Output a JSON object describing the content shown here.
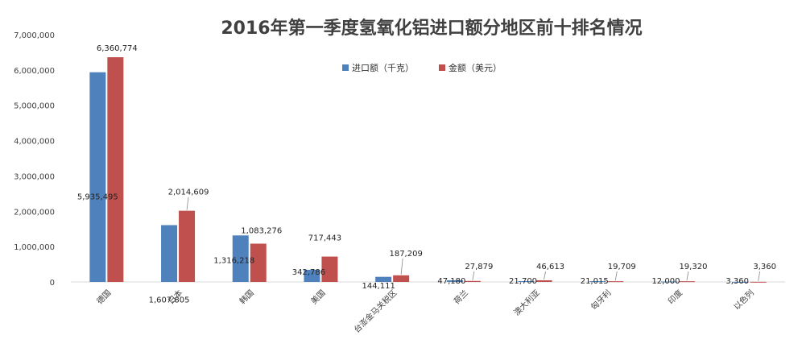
{
  "chart_data": {
    "type": "bar",
    "title": "2016年第一季度氢氧化铝进口额分地区前十排名情况",
    "categories": [
      "德国",
      "日本",
      "韩国",
      "美国",
      "台澎金马关税区",
      "荷兰",
      "澳大利亚",
      "匈牙利",
      "印度",
      "以色列"
    ],
    "series": [
      {
        "name": "进口额（千克）",
        "color": "#4f81bd",
        "values": [
          5935495,
          1607805,
          1316218,
          342786,
          144111,
          47180,
          21700,
          21015,
          12000,
          3360
        ],
        "labels": [
          "5,935,495",
          "1,607,805",
          "1,316,218",
          "342,786",
          "144,111",
          "47,180",
          "21,700",
          "21,015",
          "12,000",
          "3,360"
        ]
      },
      {
        "name": "金额（美元）",
        "color": "#c0504d",
        "values": [
          6360774,
          2014609,
          1083276,
          717443,
          187209,
          27879,
          46613,
          19709,
          19320,
          3360
        ],
        "labels": [
          "6,360,774",
          "2,014,609",
          "1,083,276",
          "717,443",
          "187,209",
          "27,879",
          "46,613",
          "19,709",
          "19,320",
          "3,360"
        ]
      }
    ],
    "ylim": [
      0,
      7000000
    ],
    "yticks": [
      "0",
      "1,000,000",
      "2,000,000",
      "3,000,000",
      "4,000,000",
      "5,000,000",
      "6,000,000",
      "7,000,000"
    ],
    "legend_position": "top-center",
    "grid": false
  }
}
